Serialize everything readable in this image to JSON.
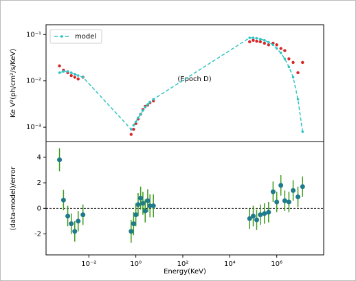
{
  "chart_data": [
    {
      "type": "line",
      "xscale": "log",
      "yscale": "log",
      "ylabel": "Ke V²(ph/cm²/s/KeV)",
      "annotation": "(Epoch D)",
      "legend": "upper left",
      "xlim": [
        0.00015,
        100000000
      ],
      "ylim": [
        0.00049,
        0.163
      ],
      "yticks": [
        {
          "value": 0.001,
          "label": "10⁻³"
        },
        {
          "value": 0.01,
          "label": "10⁻²"
        },
        {
          "value": 0.1,
          "label": "10⁻¹"
        }
      ],
      "x": [
        0.00056,
        0.00083,
        0.00126,
        0.00178,
        0.0025,
        0.0035,
        0.0056,
        0.63,
        0.8,
        1.0,
        1.25,
        1.6,
        2.0,
        2.5,
        3.2,
        4.0,
        5.6,
        70000,
        100000,
        140000,
        200000,
        300000,
        450000,
        700000,
        1000000,
        1500000,
        2200000,
        3300000,
        5000000,
        8000000,
        12600000
      ],
      "series": [
        {
          "color": "#d62728",
          "line": "none",
          "values": [
            0.021,
            0.017,
            0.015,
            0.013,
            0.012,
            0.011,
            0.012,
            0.0007,
            0.0009,
            0.0012,
            0.0015,
            0.0019,
            0.0024,
            0.0028,
            0.003,
            0.0034,
            0.0037,
            0.07,
            0.075,
            0.072,
            0.07,
            0.065,
            0.06,
            0.065,
            0.06,
            0.05,
            0.045,
            0.03,
            0.025,
            0.015,
            0.025
          ]
        },
        {
          "name": "model",
          "color": "#2ec4c4",
          "line": "dashed",
          "values": [
            0.015,
            0.016,
            0.016,
            0.015,
            0.014,
            0.013,
            0.012,
            0.0009,
            0.0011,
            0.0013,
            0.0016,
            0.0019,
            0.0023,
            0.0027,
            0.0031,
            0.0035,
            0.004,
            0.085,
            0.085,
            0.083,
            0.08,
            0.075,
            0.068,
            0.06,
            0.05,
            0.04,
            0.03,
            0.02,
            0.012,
            0.004,
            0.0008
          ]
        }
      ]
    },
    {
      "type": "errorbar",
      "xscale": "log",
      "ylabel": "(data-model)/error",
      "xlabel": "Energy(KeV)",
      "xlim": [
        0.00015,
        100000000
      ],
      "ylim": [
        -3.64,
        5.23
      ],
      "xticks": [
        {
          "value": 0.01,
          "label": "10⁻²"
        },
        {
          "value": 1,
          "label": "10⁰"
        },
        {
          "value": 100,
          "label": "10²"
        },
        {
          "value": 10000,
          "label": "10⁴"
        },
        {
          "value": 1000000,
          "label": "10⁶"
        }
      ],
      "yticks": [
        -2,
        0,
        2,
        4
      ],
      "hline": 0,
      "color": "#1f7a8c",
      "error_color": "#3a9a1a",
      "x": [
        0.00056,
        0.00083,
        0.00126,
        0.00178,
        0.0025,
        0.0035,
        0.0056,
        0.63,
        0.8,
        1.0,
        1.25,
        1.6,
        2.0,
        2.5,
        3.2,
        4.0,
        5.6,
        70000,
        100000,
        140000,
        200000,
        300000,
        450000,
        700000,
        1000000,
        1500000,
        2200000,
        3300000,
        5000000,
        8000000,
        12600000
      ],
      "values": [
        3.8,
        0.65,
        -0.6,
        -1.2,
        -1.8,
        -1.0,
        -0.5,
        -1.8,
        -1.2,
        -0.5,
        0.3,
        0.8,
        0.4,
        -0.2,
        0.6,
        0.2,
        0.2,
        -0.8,
        -0.6,
        -0.9,
        -0.5,
        -0.4,
        -0.3,
        1.3,
        0.5,
        1.8,
        0.6,
        0.5,
        1.4,
        0.9,
        1.7
      ],
      "errors": [
        0.9,
        0.8,
        0.8,
        0.8,
        0.8,
        0.8,
        0.8,
        0.9,
        0.9,
        0.9,
        0.9,
        0.9,
        0.9,
        0.9,
        0.9,
        0.9,
        0.9,
        0.8,
        0.8,
        0.8,
        0.8,
        0.8,
        0.8,
        0.8,
        0.8,
        0.8,
        0.8,
        0.8,
        0.8,
        0.8,
        0.8
      ]
    }
  ]
}
